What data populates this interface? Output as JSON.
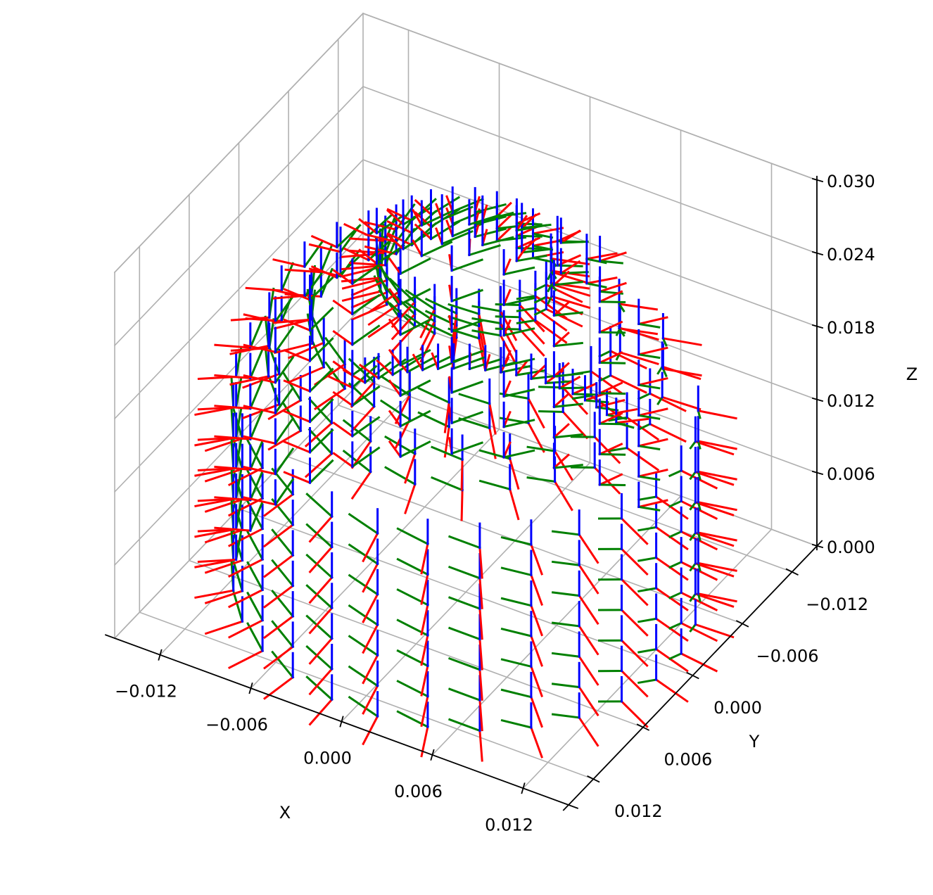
{
  "chart_data": {
    "type": "3d-quiver",
    "title": "",
    "xlabel": "X",
    "ylabel": "Y",
    "zlabel": "Z",
    "xlim": [
      -0.015,
      0.015
    ],
    "ylim": [
      -0.015,
      0.015
    ],
    "zlim": [
      0.0,
      0.03
    ],
    "xticks": [
      -0.012,
      -0.006,
      0.0,
      0.006,
      0.012
    ],
    "yticks": [
      -0.012,
      -0.006,
      0.0,
      0.006,
      0.012
    ],
    "zticks": [
      0.0,
      0.006,
      0.012,
      0.018,
      0.024,
      0.03
    ],
    "xtick_labels": [
      "−0.012",
      "−0.006",
      "0.000",
      "0.006",
      "0.012"
    ],
    "ytick_labels": [
      "−0.012",
      "−0.006",
      "0.000",
      "0.006",
      "0.012"
    ],
    "ztick_labels": [
      "0.000",
      "0.006",
      "0.012",
      "0.018",
      "0.024",
      "0.030"
    ],
    "grid": true,
    "series": [
      {
        "name": "",
        "color": "#ff0000",
        "axis": "x"
      },
      {
        "name": "",
        "color": "#008000",
        "axis": "y"
      },
      {
        "name": "",
        "color": "#0000ff",
        "axis": "z"
      }
    ],
    "rings": [
      {
        "radius": 0.0135,
        "z": [
          0.0,
          0.0025,
          0.005,
          0.0075,
          0.01,
          0.0125,
          0.015
        ],
        "n": 28
      },
      {
        "radius": 0.0115,
        "z": [
          0.018,
          0.0205
        ],
        "n": 26
      },
      {
        "radius": 0.009,
        "z": [
          0.021,
          0.023
        ],
        "n": 24
      },
      {
        "radius": 0.005,
        "z": [
          0.025,
          0.026,
          0.027
        ],
        "n": 24
      },
      {
        "radius": 0.0105,
        "z": [
          0.0095
        ],
        "n": 20,
        "arc": [
          200,
          300
        ]
      }
    ],
    "gap_deg": [
      295,
      320
    ],
    "arrow_length": 0.0022
  }
}
